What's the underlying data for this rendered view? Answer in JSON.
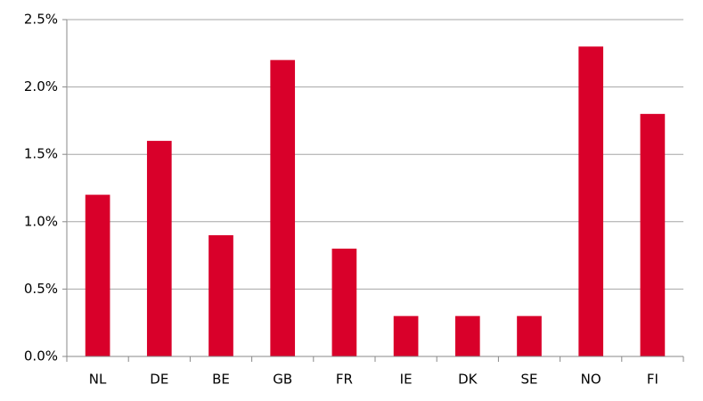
{
  "chart_data": {
    "type": "bar",
    "categories": [
      "NL",
      "DE",
      "BE",
      "GB",
      "FR",
      "IE",
      "DK",
      "SE",
      "NO",
      "FI"
    ],
    "values": [
      1.2,
      1.6,
      0.9,
      2.2,
      0.8,
      0.3,
      0.3,
      0.3,
      2.3,
      1.8
    ],
    "color": "#d9002a",
    "ylim": [
      0,
      2.5
    ],
    "yticks": [
      {
        "value": 0,
        "label": "0.0%"
      },
      {
        "value": 0.5,
        "label": "0.5%"
      },
      {
        "value": 1,
        "label": "1.0%"
      },
      {
        "value": 1.5,
        "label": "1.5%"
      },
      {
        "value": 2,
        "label": "2.0%"
      },
      {
        "value": 2.5,
        "label": "2.5%"
      }
    ],
    "grid": true
  }
}
